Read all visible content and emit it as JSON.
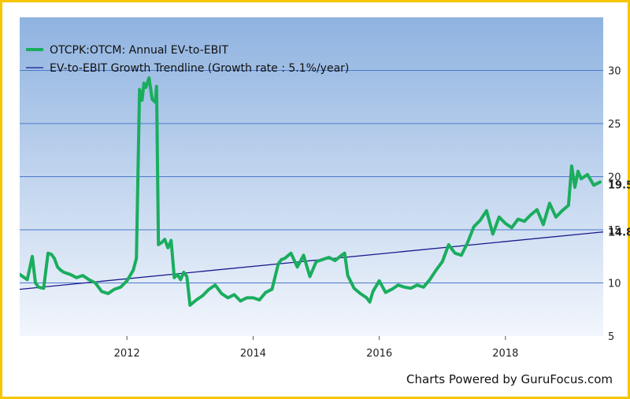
{
  "credit": "Charts Powered by GuruFocus.com",
  "colors": {
    "series": "#1aad5e",
    "trend": "#1a1a8c",
    "grid": "#4a78c8",
    "bg_top": "#8fb3e0",
    "bg_bottom": "#f2f6fc",
    "last_value": "#1aad5e",
    "trend_value": "#1a1a8c"
  },
  "chart_data": {
    "type": "line",
    "title": "",
    "xlabel": "",
    "ylabel": "",
    "xlim": [
      2010.3,
      2019.55
    ],
    "ylim": [
      5,
      35
    ],
    "y_ticks": [
      5,
      10,
      15,
      20,
      25,
      30
    ],
    "x_ticks": [
      2012,
      2014,
      2016,
      2018
    ],
    "grid": true,
    "legend_position": "top-left",
    "series": [
      {
        "name": "OTCPK:OTCM: Annual EV-to-EBIT",
        "style": "thick-line",
        "last_value_label": "19.5",
        "x": [
          2010.3,
          2010.42,
          2010.5,
          2010.55,
          2010.6,
          2010.68,
          2010.75,
          2010.8,
          2010.85,
          2010.9,
          2010.95,
          2011.0,
          2011.1,
          2011.2,
          2011.3,
          2011.4,
          2011.5,
          2011.6,
          2011.7,
          2011.8,
          2011.9,
          2012.0,
          2012.05,
          2012.1,
          2012.15,
          2012.2,
          2012.24,
          2012.27,
          2012.3,
          2012.35,
          2012.4,
          2012.45,
          2012.47,
          2012.5,
          2012.55,
          2012.6,
          2012.65,
          2012.7,
          2012.75,
          2012.8,
          2012.85,
          2012.9,
          2012.95,
          2013.0,
          2013.1,
          2013.2,
          2013.3,
          2013.4,
          2013.5,
          2013.6,
          2013.7,
          2013.8,
          2013.9,
          2014.0,
          2014.1,
          2014.2,
          2014.3,
          2014.4,
          2014.45,
          2014.5,
          2014.6,
          2014.7,
          2014.8,
          2014.9,
          2015.0,
          2015.1,
          2015.2,
          2015.3,
          2015.4,
          2015.45,
          2015.5,
          2015.6,
          2015.7,
          2015.8,
          2015.85,
          2015.9,
          2016.0,
          2016.1,
          2016.2,
          2016.3,
          2016.4,
          2016.5,
          2016.6,
          2016.7,
          2016.8,
          2016.9,
          2017.0,
          2017.1,
          2017.2,
          2017.3,
          2017.4,
          2017.5,
          2017.6,
          2017.7,
          2017.8,
          2017.9,
          2018.0,
          2018.1,
          2018.2,
          2018.3,
          2018.4,
          2018.5,
          2018.6,
          2018.7,
          2018.8,
          2018.9,
          2019.0,
          2019.05,
          2019.1,
          2019.15,
          2019.2,
          2019.3,
          2019.4,
          2019.5
        ],
        "y": [
          10.8,
          10.3,
          12.5,
          10.0,
          9.6,
          9.5,
          12.8,
          12.7,
          12.3,
          11.5,
          11.2,
          11.0,
          10.8,
          10.5,
          10.7,
          10.3,
          10.0,
          9.2,
          9.0,
          9.4,
          9.6,
          10.2,
          10.7,
          11.2,
          12.3,
          28.2,
          27.2,
          28.8,
          28.4,
          29.3,
          27.3,
          27.0,
          28.5,
          13.6,
          13.8,
          14.1,
          13.3,
          14.0,
          10.5,
          10.8,
          10.3,
          11.0,
          10.6,
          7.9,
          8.4,
          8.8,
          9.4,
          9.8,
          9.0,
          8.6,
          8.9,
          8.3,
          8.6,
          8.6,
          8.4,
          9.1,
          9.4,
          11.8,
          12.2,
          12.3,
          12.8,
          11.5,
          12.6,
          10.6,
          12.0,
          12.2,
          12.4,
          12.1,
          12.6,
          12.8,
          10.7,
          9.5,
          9.0,
          8.6,
          8.2,
          9.2,
          10.2,
          9.1,
          9.4,
          9.8,
          9.6,
          9.5,
          9.8,
          9.6,
          10.3,
          11.2,
          12.0,
          13.6,
          12.8,
          12.6,
          13.8,
          15.3,
          15.9,
          16.8,
          14.6,
          16.2,
          15.6,
          15.2,
          16.0,
          15.8,
          16.4,
          16.9,
          15.5,
          17.5,
          16.2,
          16.8,
          17.3,
          21.0,
          19.0,
          20.5,
          19.8,
          20.2,
          19.2,
          19.5
        ]
      },
      {
        "name": "EV-to-EBIT Growth Trendline (Growth rate : 5.1%/year)",
        "style": "thin-line",
        "last_value_label": "14.8",
        "x": [
          2010.3,
          2019.55
        ],
        "y": [
          9.4,
          14.8
        ]
      }
    ]
  }
}
